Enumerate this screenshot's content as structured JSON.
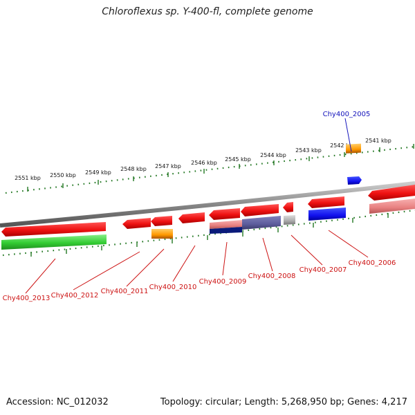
{
  "title": "Chloroflexus sp. Y-400-fl, complete genome",
  "footer": {
    "accession": "Accession: NC_012032",
    "summary": "Topology: circular; Length: 5,268,950 bp; Genes: 4,217"
  },
  "scale_labels": [
    "2551 kbp",
    "2550 kbp",
    "2549 kbp",
    "2548 kbp",
    "2547 kbp",
    "2546 kbp",
    "2545 kbp",
    "2544 kbp",
    "2543 kbp",
    "2542 kbp",
    "2541 kbp"
  ],
  "gene_labels": [
    {
      "text": "Chy400_2005",
      "color": "#1111bb"
    },
    {
      "text": "Chy400_2006",
      "color": "#cc1111"
    },
    {
      "text": "Chy400_2007",
      "color": "#cc1111"
    },
    {
      "text": "Chy400_2008",
      "color": "#cc1111"
    },
    {
      "text": "Chy400_2009",
      "color": "#cc1111"
    },
    {
      "text": "Chy400_2010",
      "color": "#cc1111"
    },
    {
      "text": "Chy400_2011",
      "color": "#cc1111"
    },
    {
      "text": "Chy400_2012",
      "color": "#cc1111"
    },
    {
      "text": "Chy400_2013",
      "color": "#cc1111"
    }
  ],
  "colors": {
    "cds_red": "#ee1111",
    "cds_green": "#33cc33",
    "orange": "#ff9900",
    "blue": "#1111ee",
    "slate": "#5c5c9c",
    "grey": "#aaaaaa",
    "pink": "#e88080",
    "backbone": "#888888",
    "tick_green": "#227722"
  }
}
